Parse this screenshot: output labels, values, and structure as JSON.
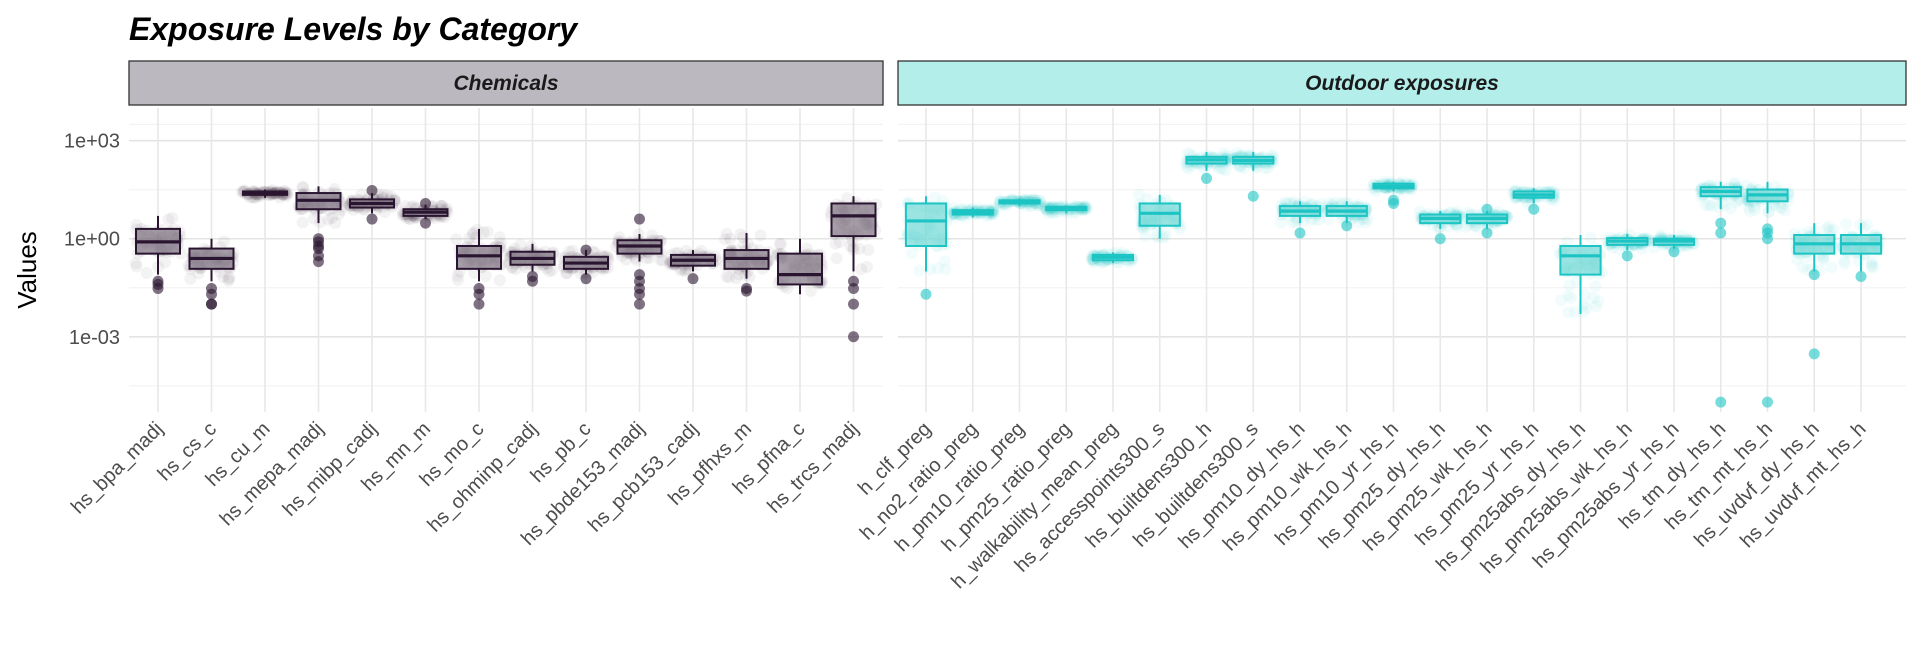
{
  "chart_data": {
    "type": "boxplot",
    "title": "Exposure Levels by Category",
    "ylabel": "Values",
    "xlabel": "",
    "y_scale": "log10",
    "ylim": [
      5e-06,
      10000
    ],
    "y_ticks": [
      {
        "value": 1000,
        "label": "1e+03"
      },
      {
        "value": 1,
        "label": "1e+00"
      },
      {
        "value": 0.001,
        "label": "1e-03"
      }
    ],
    "grid": true,
    "legend": "none",
    "panels": [
      {
        "name": "Chemicals",
        "strip_color": "#bcb8bf",
        "color": "#2a1530",
        "box_fill": "#8a7f8d",
        "categories": [
          {
            "name": "hs_bpa_madj",
            "q1": 0.35,
            "median": 0.8,
            "q3": 2.0,
            "whisker_low": 0.08,
            "whisker_high": 5.0,
            "outliers": [
              0.04,
              0.03,
              0.05
            ]
          },
          {
            "name": "hs_cs_c",
            "q1": 0.12,
            "median": 0.25,
            "q3": 0.5,
            "whisker_low": 0.05,
            "whisker_high": 1.0,
            "outliers": [
              0.02,
              0.01,
              0.01,
              0.03
            ]
          },
          {
            "name": "hs_cu_m",
            "q1": 22,
            "median": 24,
            "q3": 28,
            "whisker_low": 18,
            "whisker_high": 32,
            "outliers": []
          },
          {
            "name": "hs_mepa_madj",
            "q1": 8,
            "median": 15,
            "q3": 25,
            "whisker_low": 3,
            "whisker_high": 40,
            "outliers": [
              1.0,
              0.5,
              0.3,
              0.2,
              0.8,
              0.6
            ]
          },
          {
            "name": "hs_mibp_cadj",
            "q1": 9,
            "median": 12,
            "q3": 16,
            "whisker_low": 6,
            "whisker_high": 25,
            "outliers": [
              4,
              30
            ]
          },
          {
            "name": "hs_mn_m",
            "q1": 5,
            "median": 6.5,
            "q3": 8,
            "whisker_low": 4,
            "whisker_high": 11,
            "outliers": [
              3,
              12
            ]
          },
          {
            "name": "hs_mo_c",
            "q1": 0.12,
            "median": 0.3,
            "q3": 0.6,
            "whisker_low": 0.05,
            "whisker_high": 2.0,
            "outliers": [
              0.02,
              0.01,
              0.03
            ]
          },
          {
            "name": "hs_ohminp_cadj",
            "q1": 0.16,
            "median": 0.25,
            "q3": 0.4,
            "whisker_low": 0.1,
            "whisker_high": 0.7,
            "outliers": [
              0.05,
              0.07
            ]
          },
          {
            "name": "hs_pb_c",
            "q1": 0.12,
            "median": 0.18,
            "q3": 0.28,
            "whisker_low": 0.08,
            "whisker_high": 0.45,
            "outliers": [
              0.06,
              0.45
            ]
          },
          {
            "name": "hs_pbde153_madj",
            "q1": 0.35,
            "median": 0.6,
            "q3": 0.9,
            "whisker_low": 0.2,
            "whisker_high": 1.4,
            "outliers": [
              4.0,
              0.08,
              0.05,
              0.03,
              0.02,
              0.01
            ]
          },
          {
            "name": "hs_pcb153_cadj",
            "q1": 0.15,
            "median": 0.22,
            "q3": 0.32,
            "whisker_low": 0.1,
            "whisker_high": 0.45,
            "outliers": [
              0.06
            ]
          },
          {
            "name": "hs_pfhxs_m",
            "q1": 0.12,
            "median": 0.25,
            "q3": 0.45,
            "whisker_low": 0.06,
            "whisker_high": 1.5,
            "outliers": [
              0.03,
              0.025
            ]
          },
          {
            "name": "hs_pfna_c",
            "q1": 0.04,
            "median": 0.08,
            "q3": 0.35,
            "whisker_low": 0.02,
            "whisker_high": 1.0,
            "outliers": []
          },
          {
            "name": "hs_trcs_madj",
            "q1": 1.2,
            "median": 5,
            "q3": 12,
            "whisker_low": 0.1,
            "whisker_high": 20,
            "outliers": [
              0.05,
              0.03,
              0.01,
              0.001
            ]
          }
        ]
      },
      {
        "name": "Outdoor exposures",
        "strip_color": "#b3eeeb",
        "color": "#1cc4c4",
        "box_fill": "#7fdcda",
        "categories": [
          {
            "name": "h_clf_preg",
            "q1": 0.6,
            "median": 3.5,
            "q3": 12,
            "whisker_low": 0.1,
            "whisker_high": 20,
            "outliers": [
              0.02
            ]
          },
          {
            "name": "h_no2_ratio_preg",
            "q1": 5.5,
            "median": 6.5,
            "q3": 7.5,
            "whisker_low": 4.5,
            "whisker_high": 9,
            "outliers": []
          },
          {
            "name": "h_pm10_ratio_preg",
            "q1": 12,
            "median": 13.5,
            "q3": 15,
            "whisker_low": 10,
            "whisker_high": 17,
            "outliers": []
          },
          {
            "name": "h_pm25_ratio_preg",
            "q1": 7.5,
            "median": 8.5,
            "q3": 9.5,
            "whisker_low": 6,
            "whisker_high": 10.5,
            "outliers": []
          },
          {
            "name": "h_walkability_mean_preg",
            "q1": 0.22,
            "median": 0.27,
            "q3": 0.32,
            "whisker_low": 0.18,
            "whisker_high": 0.38,
            "outliers": []
          },
          {
            "name": "hs_accesspoints300_s",
            "q1": 2.5,
            "median": 6,
            "q3": 12,
            "whisker_low": 1,
            "whisker_high": 22,
            "outliers": []
          },
          {
            "name": "hs_builtdens300_h",
            "q1": 200,
            "median": 260,
            "q3": 320,
            "whisker_low": 120,
            "whisker_high": 450,
            "outliers": [
              70
            ]
          },
          {
            "name": "hs_builtdens300_s",
            "q1": 200,
            "median": 250,
            "q3": 320,
            "whisker_low": 120,
            "whisker_high": 450,
            "outliers": [
              20
            ]
          },
          {
            "name": "hs_pm10_dy_hs_h",
            "q1": 5,
            "median": 7,
            "q3": 10,
            "whisker_low": 3,
            "whisker_high": 14,
            "outliers": [
              1.5
            ]
          },
          {
            "name": "hs_pm10_wk_hs_h",
            "q1": 5,
            "median": 7,
            "q3": 10,
            "whisker_low": 3,
            "whisker_high": 14,
            "outliers": [
              2.5
            ]
          },
          {
            "name": "hs_pm10_yr_hs_h",
            "q1": 35,
            "median": 40,
            "q3": 48,
            "whisker_low": 28,
            "whisker_high": 55,
            "outliers": [
              12,
              15
            ]
          },
          {
            "name": "hs_pm25_dy_hs_h",
            "q1": 3,
            "median": 4.2,
            "q3": 5.5,
            "whisker_low": 2,
            "whisker_high": 7,
            "outliers": [
              1.0
            ]
          },
          {
            "name": "hs_pm25_wk_hs_h",
            "q1": 3,
            "median": 4.2,
            "q3": 5.5,
            "whisker_low": 2,
            "whisker_high": 7,
            "outliers": [
              1.5,
              8
            ]
          },
          {
            "name": "hs_pm25_yr_hs_h",
            "q1": 18,
            "median": 22,
            "q3": 28,
            "whisker_low": 12,
            "whisker_high": 35,
            "outliers": [
              8
            ]
          },
          {
            "name": "hs_pm25abs_dy_hs_h",
            "q1": 0.08,
            "median": 0.3,
            "q3": 0.6,
            "whisker_low": 0.005,
            "whisker_high": 1.3,
            "outliers": []
          },
          {
            "name": "hs_pm25abs_wk_hs_h",
            "q1": 0.65,
            "median": 0.85,
            "q3": 1.05,
            "whisker_low": 0.45,
            "whisker_high": 1.4,
            "outliers": [
              0.3
            ]
          },
          {
            "name": "hs_pm25abs_yr_hs_h",
            "q1": 0.65,
            "median": 0.85,
            "q3": 1.0,
            "whisker_low": 0.5,
            "whisker_high": 1.3,
            "outliers": [
              0.4
            ]
          },
          {
            "name": "hs_tm_dy_hs_h",
            "q1": 20,
            "median": 28,
            "q3": 38,
            "whisker_low": 8,
            "whisker_high": 55,
            "outliers": [
              3,
              1.5,
              1e-05
            ]
          },
          {
            "name": "hs_tm_mt_hs_h",
            "q1": 14,
            "median": 22,
            "q3": 32,
            "whisker_low": 6,
            "whisker_high": 55,
            "outliers": [
              2,
              1.5,
              1,
              1e-05
            ]
          },
          {
            "name": "hs_uvdvf_dy_hs_h",
            "q1": 0.35,
            "median": 0.7,
            "q3": 1.3,
            "whisker_low": 0.1,
            "whisker_high": 3,
            "outliers": [
              0.08,
              0.0003
            ]
          },
          {
            "name": "hs_uvdvf_mt_hs_h",
            "q1": 0.35,
            "median": 0.7,
            "q3": 1.3,
            "whisker_low": 0.1,
            "whisker_high": 3,
            "outliers": [
              0.07
            ]
          }
        ]
      }
    ]
  }
}
